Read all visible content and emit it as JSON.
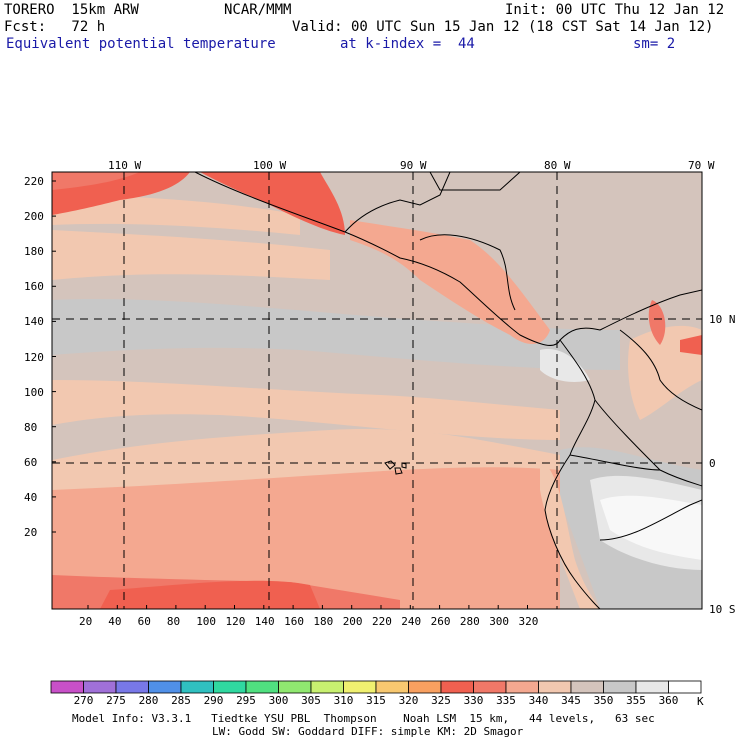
{
  "header": {
    "model": "TORERO  15km ARW",
    "center": "NCAR/MMM",
    "init": "Init: 00 UTC Thu 12 Jan 12",
    "fcst": "Fcst:   72 h",
    "valid": "Valid: 00 UTC Sun 15 Jan 12 (18 CST Sat 14 Jan 12)",
    "field": "Equivalent potential temperature",
    "level": "at k-index =  44",
    "smooth": "sm= 2"
  },
  "map": {
    "lon_labels": [
      "110 W",
      "100 W",
      "90 W",
      "80 W",
      "70 W"
    ],
    "lat_labels": [
      "10 N",
      "0",
      "10 S"
    ],
    "y_ticks": [
      "220",
      "200",
      "180",
      "160",
      "140",
      "120",
      "100",
      "80",
      "60",
      "40",
      "20"
    ],
    "x_ticks": [
      "20",
      "40",
      "60",
      "80",
      "100",
      "120",
      "140",
      "160",
      "180",
      "200",
      "220",
      "240",
      "260",
      "280",
      "300",
      "320"
    ]
  },
  "colorbar": {
    "labels": [
      "270",
      "275",
      "280",
      "285",
      "290",
      "295",
      "300",
      "305",
      "310",
      "315",
      "320",
      "325",
      "330",
      "335",
      "340",
      "345",
      "350",
      "355",
      "360"
    ],
    "unit": "K",
    "colors": [
      "#c850c8",
      "#a070d8",
      "#7878e8",
      "#5090e8",
      "#30c0c0",
      "#30d8a0",
      "#50e080",
      "#90e870",
      "#c8f070",
      "#f0f070",
      "#f8c870",
      "#f8a060",
      "#f06050",
      "#f07868",
      "#f4a890",
      "#f2c8b0",
      "#d4c4bc",
      "#c8c8c8",
      "#e8e8e8",
      "#ffffff"
    ]
  },
  "footer": {
    "line1": "Model Info: V3.3.1   Tiedtke YSU PBL  Thompson    Noah LSM  15 km,   44 levels,   63 sec",
    "line2": "LW: Godd SW: Goddard DIFF: simple KM: 2D Smagor"
  }
}
